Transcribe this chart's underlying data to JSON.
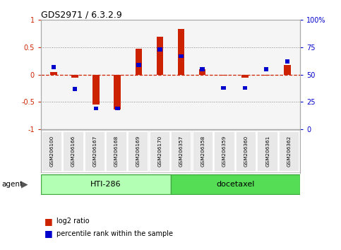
{
  "title": "GDS2971 / 6.3.2.9",
  "samples": [
    "GSM206100",
    "GSM206166",
    "GSM206167",
    "GSM206168",
    "GSM206169",
    "GSM206170",
    "GSM206357",
    "GSM206358",
    "GSM206359",
    "GSM206360",
    "GSM206361",
    "GSM206362"
  ],
  "log2_ratio": [
    0.05,
    -0.05,
    -0.55,
    -0.63,
    0.48,
    0.7,
    0.83,
    0.1,
    -0.02,
    -0.05,
    -0.02,
    0.18
  ],
  "percentile_display": [
    57,
    37,
    19,
    19,
    59,
    73,
    67,
    55,
    38,
    38,
    55,
    62
  ],
  "group1_label": "HTI-286",
  "group2_label": "docetaxel",
  "bar_color_red": "#cc2200",
  "bar_color_blue": "#0000cc",
  "agent_label": "agent",
  "bg_color": "#ffffff",
  "plot_bg": "#f5f5f5",
  "border_color": "#aaaaaa",
  "grid_color": "#888888",
  "label_bg": "#e0e0e0",
  "group1_color": "#b3ffb3",
  "group2_color": "#55dd55",
  "group_border_color": "#44aa44"
}
